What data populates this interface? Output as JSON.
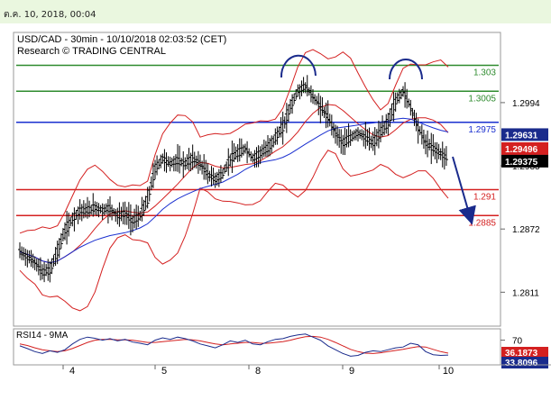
{
  "timestamp": "ต.ค. 10, 2018, 00:04",
  "chart_data": {
    "type": "candlestick",
    "title": "USD/CAD - 30min - 10/10/2018 02:03:52 (CET)",
    "subtitle": "Research © TRADING CENTRAL",
    "y_ticks": [
      "1.2994",
      "1.2933",
      "1.2872",
      "1.2811"
    ],
    "ylim": [
      1.278,
      1.306
    ],
    "x_ticks": [
      "4",
      "5",
      "8",
      "9",
      "10"
    ],
    "levels": [
      {
        "value": 1.303,
        "label": "1.303",
        "color": "#2e8b2e"
      },
      {
        "value": 1.3005,
        "label": "1.3005",
        "color": "#2e8b2e"
      },
      {
        "value": 1.2975,
        "label": "1.2975",
        "color": "#1a2fcf"
      },
      {
        "value": 1.291,
        "label": "1.291",
        "color": "#d42020"
      },
      {
        "value": 1.2885,
        "label": "1.2885",
        "color": "#d42020"
      }
    ],
    "price_tags": [
      {
        "value": 1.29631,
        "label": "1.29631",
        "color": "#1a2b8c"
      },
      {
        "value": 1.29496,
        "label": "1.29496",
        "color": "#d42020"
      },
      {
        "value": 1.29375,
        "label": "1.29375",
        "color": "#000000"
      }
    ],
    "price_series": [
      1.285,
      1.2845,
      1.284,
      1.283,
      1.2832,
      1.285,
      1.287,
      1.2882,
      1.289,
      1.289,
      1.2893,
      1.289,
      1.2892,
      1.2885,
      1.2887,
      1.288,
      1.2885,
      1.29,
      1.293,
      1.294,
      1.2935,
      1.2938,
      1.2935,
      1.294,
      1.2935,
      1.2925,
      1.292,
      1.2925,
      1.294,
      1.2945,
      1.295,
      1.294,
      1.2945,
      1.295,
      1.296,
      1.297,
      1.299,
      1.3005,
      1.301,
      1.3,
      1.299,
      1.298,
      1.2965,
      1.2955,
      1.296,
      1.2965,
      1.296,
      1.2955,
      1.2965,
      1.2975,
      1.2995,
      1.3005,
      1.299,
      1.297,
      1.2955,
      1.295,
      1.2945,
      1.294
    ],
    "rsi": {
      "label": "RSI14 - 9MA",
      "ticks": [
        "70"
      ],
      "ylim": [
        10,
        95
      ],
      "tags": [
        {
          "value": 36.1873,
          "label": "36.1873",
          "color": "#d42020"
        },
        {
          "value": 33.8096,
          "label": "33.8096",
          "color": "#1a2b8c"
        }
      ],
      "rsi_series": [
        55,
        48,
        40,
        35,
        42,
        38,
        45,
        60,
        72,
        78,
        75,
        70,
        74,
        68,
        72,
        65,
        62,
        58,
        70,
        76,
        72,
        78,
        74,
        68,
        60,
        55,
        50,
        58,
        68,
        64,
        70,
        60,
        58,
        66,
        72,
        74,
        80,
        84,
        86,
        78,
        70,
        55,
        45,
        35,
        28,
        30,
        38,
        42,
        40,
        45,
        50,
        52,
        62,
        58,
        40,
        32,
        30,
        31
      ],
      "ma_series": [
        60,
        56,
        50,
        45,
        42,
        40,
        42,
        48,
        56,
        64,
        70,
        72,
        72,
        71,
        71,
        70,
        67,
        64,
        64,
        66,
        68,
        70,
        72,
        71,
        68,
        64,
        60,
        58,
        60,
        62,
        64,
        64,
        62,
        62,
        64,
        66,
        70,
        75,
        79,
        80,
        78,
        72,
        64,
        55,
        46,
        40,
        36,
        35,
        37,
        40,
        43,
        46,
        50,
        53,
        52,
        46,
        40,
        36
      ]
    }
  }
}
